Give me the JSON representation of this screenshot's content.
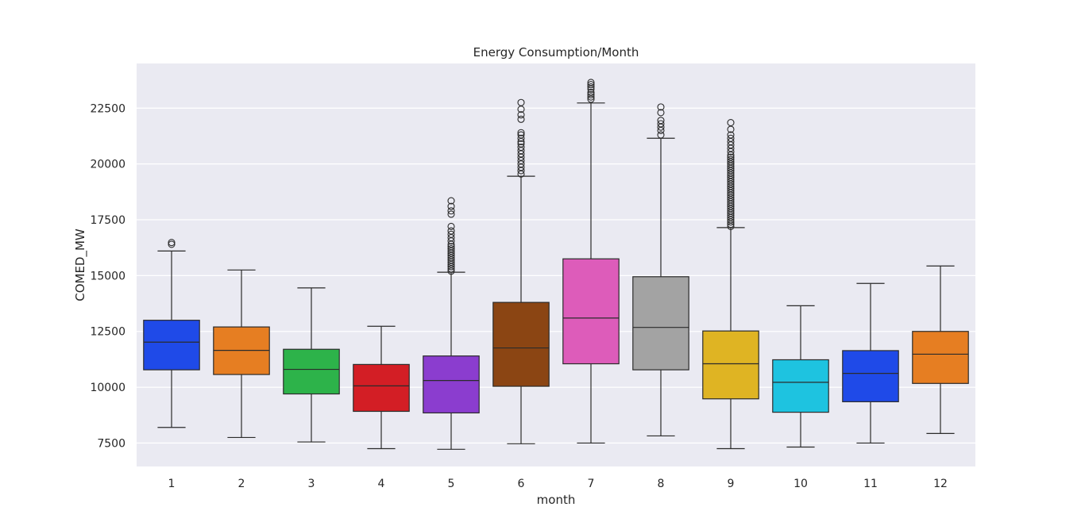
{
  "chart_data": {
    "type": "box",
    "title": "Energy Consumption/Month",
    "xlabel": "month",
    "ylabel": "COMED_MW",
    "categories": [
      "1",
      "2",
      "3",
      "4",
      "5",
      "6",
      "7",
      "8",
      "9",
      "10",
      "11",
      "12"
    ],
    "yticks": [
      7500,
      10000,
      12500,
      15000,
      17500,
      20000,
      22500
    ],
    "ylim": [
      6450,
      24500
    ],
    "grid": true,
    "background": "#eaeaf2",
    "boxes": [
      {
        "month": "1",
        "color": "#1f4ae8",
        "whisker_low": 8200,
        "q1": 10780,
        "median": 12020,
        "q3": 13000,
        "whisker_high": 16100,
        "outliers": [
          16400,
          16480
        ]
      },
      {
        "month": "2",
        "color": "#e67e22",
        "whisker_low": 7750,
        "q1": 10570,
        "median": 11650,
        "q3": 12700,
        "whisker_high": 15250,
        "outliers": []
      },
      {
        "month": "3",
        "color": "#2db34a",
        "whisker_low": 7550,
        "q1": 9700,
        "median": 10800,
        "q3": 11700,
        "whisker_high": 14450,
        "outliers": []
      },
      {
        "month": "4",
        "color": "#d31e25",
        "whisker_low": 7250,
        "q1": 8920,
        "median": 10060,
        "q3": 11020,
        "whisker_high": 12730,
        "outliers": []
      },
      {
        "month": "5",
        "color": "#8b3dcf",
        "whisker_low": 7220,
        "q1": 8850,
        "median": 10300,
        "q3": 11400,
        "whisker_high": 15150,
        "outliers": [
          15200,
          15300,
          15400,
          15500,
          15600,
          15700,
          15800,
          15900,
          16000,
          16100,
          16200,
          16300,
          16400,
          16550,
          16700,
          16850,
          17000,
          17200,
          17750,
          17900,
          18100,
          18350
        ]
      },
      {
        "month": "6",
        "color": "#8b4513",
        "whisker_low": 7470,
        "q1": 10040,
        "median": 11760,
        "q3": 13800,
        "whisker_high": 19450,
        "outliers": [
          19550,
          19700,
          19850,
          20000,
          20150,
          20300,
          20450,
          20600,
          20750,
          20900,
          21000,
          21150,
          21300,
          21400,
          22000,
          22200,
          22450,
          22750
        ]
      },
      {
        "month": "7",
        "color": "#dd5cba",
        "whisker_low": 7500,
        "q1": 11050,
        "median": 13100,
        "q3": 15750,
        "whisker_high": 22730,
        "outliers": [
          22900,
          23000,
          23100,
          23200,
          23350,
          23450,
          23550,
          23650
        ]
      },
      {
        "month": "8",
        "color": "#a3a3a3",
        "whisker_low": 7820,
        "q1": 10780,
        "median": 12680,
        "q3": 14950,
        "whisker_high": 21150,
        "outliers": [
          21300,
          21500,
          21650,
          21800,
          21950,
          22300,
          22550
        ]
      },
      {
        "month": "9",
        "color": "#dfb423",
        "whisker_low": 7250,
        "q1": 9480,
        "median": 11050,
        "q3": 12520,
        "whisker_high": 17150,
        "outliers": [
          17200,
          17300,
          17400,
          17500,
          17600,
          17700,
          17800,
          17900,
          18000,
          18100,
          18200,
          18300,
          18400,
          18500,
          18600,
          18700,
          18800,
          18900,
          19000,
          19100,
          19200,
          19300,
          19400,
          19500,
          19600,
          19700,
          19800,
          19900,
          20000,
          20100,
          20200,
          20300,
          20400,
          20550,
          20700,
          20850,
          21000,
          21150,
          21300,
          21550,
          21850
        ]
      },
      {
        "month": "10",
        "color": "#1ec3e0",
        "whisker_low": 7320,
        "q1": 8880,
        "median": 10220,
        "q3": 11230,
        "whisker_high": 13650,
        "outliers": []
      },
      {
        "month": "11",
        "color": "#1f4ae8",
        "whisker_low": 7500,
        "q1": 9350,
        "median": 10620,
        "q3": 11640,
        "whisker_high": 14650,
        "outliers": []
      },
      {
        "month": "12",
        "color": "#e67e22",
        "whisker_low": 7930,
        "q1": 10170,
        "median": 11480,
        "q3": 12500,
        "whisker_high": 15430,
        "outliers": []
      }
    ]
  }
}
